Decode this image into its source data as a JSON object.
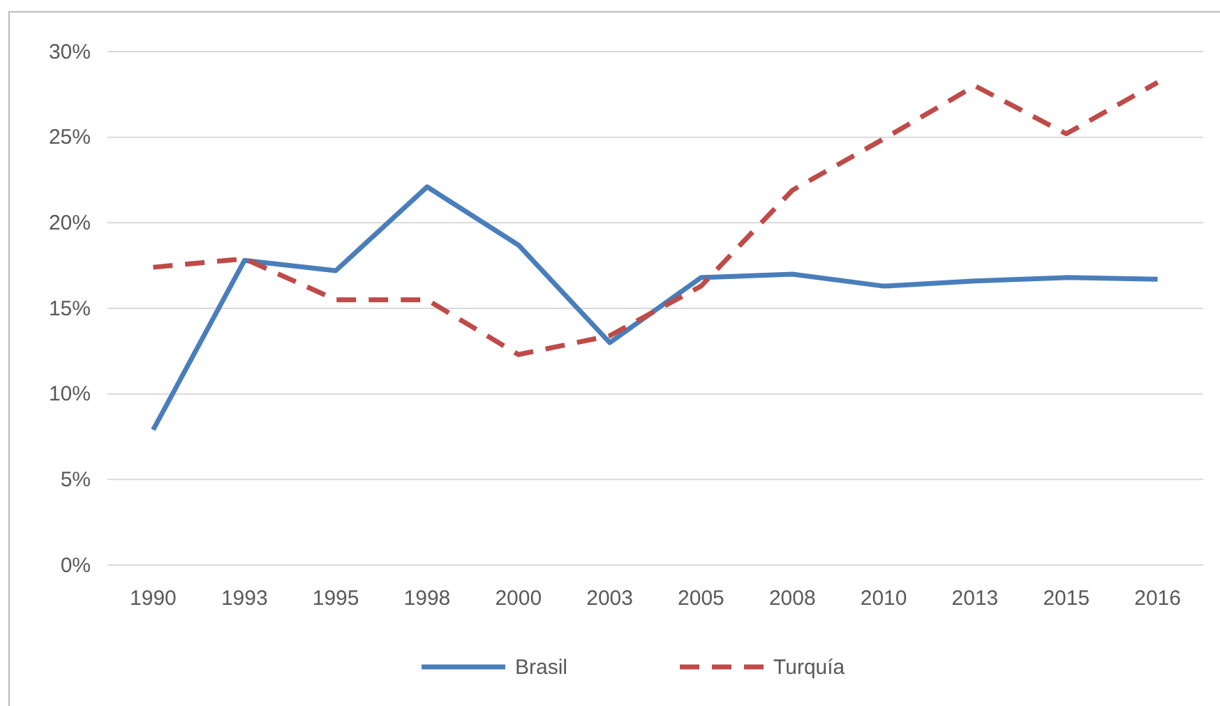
{
  "chart_data": {
    "type": "line",
    "categories": [
      "1990",
      "1993",
      "1995",
      "1998",
      "2000",
      "2003",
      "2005",
      "2008",
      "2010",
      "2013",
      "2015",
      "2016"
    ],
    "series": [
      {
        "name": "Brasil",
        "color": "#4a7ebb",
        "line_style": "solid",
        "values": [
          7.9,
          17.8,
          17.2,
          22.1,
          18.7,
          13.0,
          16.8,
          17.0,
          16.3,
          16.6,
          16.8,
          16.7
        ]
      },
      {
        "name": "Turquía",
        "color": "#be4b48",
        "line_style": "dashed",
        "values": [
          17.4,
          17.9,
          15.5,
          15.5,
          12.3,
          13.4,
          16.3,
          21.9,
          24.9,
          28.0,
          25.2,
          28.2
        ]
      }
    ],
    "ylim": [
      0,
      30
    ],
    "yticks": [
      {
        "value": 0,
        "label": "0%"
      },
      {
        "value": 5,
        "label": "5%"
      },
      {
        "value": 10,
        "label": "10%"
      },
      {
        "value": 15,
        "label": "15%"
      },
      {
        "value": 20,
        "label": "20%"
      },
      {
        "value": 25,
        "label": "25%"
      },
      {
        "value": 30,
        "label": "30%"
      }
    ],
    "grid": "y",
    "legend": "bottom",
    "marker": "none"
  }
}
